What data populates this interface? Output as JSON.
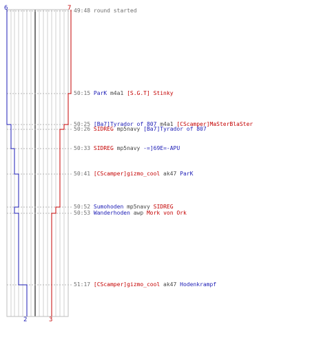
{
  "teams": {
    "blue": {
      "color": "#1b1bb5",
      "start": "6",
      "end": "2"
    },
    "red": {
      "color": "#c40000",
      "start": "7",
      "end": "3"
    }
  },
  "events": [
    {
      "time": "49:48",
      "parts": [
        {
          "text": "round started",
          "style": "t"
        }
      ]
    },
    {
      "time": "50:15",
      "parts": [
        {
          "text": "ParK",
          "style": "blue"
        },
        {
          "text": " m4a1 ",
          "style": "w"
        },
        {
          "text": "[S.G.T] Stinky",
          "style": "red"
        }
      ]
    },
    {
      "time": "50:25",
      "parts": [
        {
          "text": "[Ba7]Tyrador of 807",
          "style": "blue"
        },
        {
          "text": " m4a1 ",
          "style": "w"
        },
        {
          "text": "[CScamper]MaSterBlaSter",
          "style": "red"
        }
      ]
    },
    {
      "time": "50:26",
      "parts": [
        {
          "text": "SIDREG",
          "style": "red"
        },
        {
          "text": " mp5navy ",
          "style": "w"
        },
        {
          "text": "[Ba7]Tyrador of 807",
          "style": "blue"
        }
      ]
    },
    {
      "time": "50:33",
      "parts": [
        {
          "text": "SIDREG",
          "style": "red"
        },
        {
          "text": " mp5navy ",
          "style": "w"
        },
        {
          "text": "-=]69E=-APU",
          "style": "blue"
        }
      ]
    },
    {
      "time": "50:41",
      "parts": [
        {
          "text": "[CScamper]gizmo_cool",
          "style": "red"
        },
        {
          "text": " ak47 ",
          "style": "w"
        },
        {
          "text": "ParK",
          "style": "blue"
        }
      ]
    },
    {
      "time": "50:52",
      "parts": [
        {
          "text": "Sumohoden",
          "style": "blue"
        },
        {
          "text": " mp5navy ",
          "style": "w"
        },
        {
          "text": "SIDREG",
          "style": "red"
        }
      ]
    },
    {
      "time": "50:53",
      "parts": [
        {
          "text": "Wanderhoden",
          "style": "blue"
        },
        {
          "text": " awp ",
          "style": "w"
        },
        {
          "text": "Mork von Ork",
          "style": "red"
        }
      ]
    },
    {
      "time": "51:17",
      "parts": [
        {
          "text": "[CScamper]gizmo_cool",
          "style": "red"
        },
        {
          "text": " ak47 ",
          "style": "w"
        },
        {
          "text": "Hodenkrampf",
          "style": "blue"
        }
      ]
    }
  ]
}
